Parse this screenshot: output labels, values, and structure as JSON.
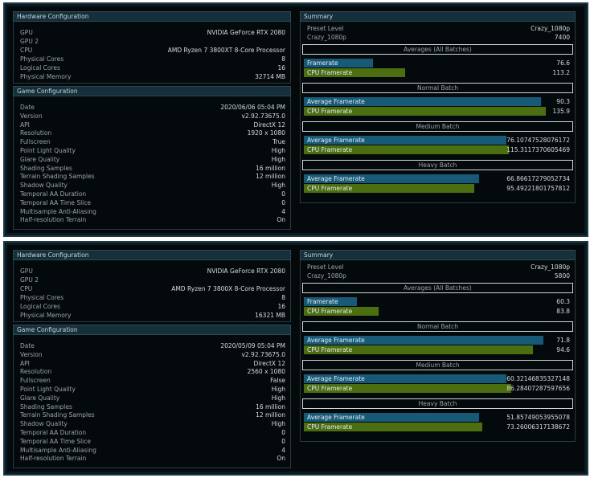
{
  "colors": {
    "framerate_bar": "#175a78",
    "cpu_bar": "#4b6e10",
    "header_bg": "#16303b"
  },
  "runs": [
    {
      "hardware": {
        "title": "Hardware Configuration",
        "rows": [
          {
            "k": "GPU",
            "v": "NVIDIA GeForce RTX 2080"
          },
          {
            "k": "GPU 2",
            "v": ""
          },
          {
            "k": "CPU",
            "v": "AMD Ryzen 7 3800XT 8-Core Processor"
          },
          {
            "k": "Physical Cores",
            "v": "8"
          },
          {
            "k": "Logical Cores",
            "v": "16"
          },
          {
            "k": "Physical Memory",
            "v": "32714 MB"
          }
        ]
      },
      "game": {
        "title": "Game Configuration",
        "rows": [
          {
            "k": "Date",
            "v": "2020/06/06 05:04 PM"
          },
          {
            "k": "Version",
            "v": "v2.92.73675.0"
          },
          {
            "k": "API",
            "v": "DirectX 12"
          },
          {
            "k": "Resolution",
            "v": "1920 x 1080"
          },
          {
            "k": "Fullscreen",
            "v": "True"
          },
          {
            "k": "Point Light Quality",
            "v": "High"
          },
          {
            "k": "Glare Quality",
            "v": "High"
          },
          {
            "k": "Shading Samples",
            "v": "16 million"
          },
          {
            "k": "Terrain Shading Samples",
            "v": "12 million"
          },
          {
            "k": "Shadow Quality",
            "v": "High"
          },
          {
            "k": "Temporal AA Duration",
            "v": "0"
          },
          {
            "k": "Temporal AA Time Slice",
            "v": "0"
          },
          {
            "k": "Multisample Anti-Aliasing",
            "v": "4"
          },
          {
            "k": "Half-resolution Terrain",
            "v": "On"
          }
        ]
      },
      "summary": {
        "title": "Summary",
        "preset_label": "Preset Level",
        "preset_value": "Crazy_1080p",
        "score_label": "Crazy_1080p",
        "score": "7400",
        "sections": [
          {
            "title": "Averages (All Batches)",
            "bars": [
              {
                "label": "Framerate",
                "value": "76.6",
                "fill": 0.26
              },
              {
                "label": "CPU Framerate",
                "value": "113.2",
                "fill": 0.38
              }
            ]
          },
          {
            "title": "Normal Batch",
            "bars": [
              {
                "label": "Average Framerate",
                "value": "90.3",
                "fill": 0.89
              },
              {
                "label": "CPU Framerate",
                "value": "135.9",
                "fill": 0.91
              }
            ]
          },
          {
            "title": "Medium Batch",
            "bars": [
              {
                "label": "Average Framerate",
                "value": "76.10747528076172",
                "fill": 0.76
              },
              {
                "label": "CPU Framerate",
                "value": "115.3117370605469",
                "fill": 0.77
              }
            ]
          },
          {
            "title": "Heavy Batch",
            "bars": [
              {
                "label": "Average Framerate",
                "value": "66.86617279052734",
                "fill": 0.66
              },
              {
                "label": "CPU Framerate",
                "value": "95.49221801757812",
                "fill": 0.64
              }
            ]
          }
        ]
      }
    },
    {
      "hardware": {
        "title": "Hardware Configuration",
        "rows": [
          {
            "k": "GPU",
            "v": "NVIDIA GeForce RTX 2080"
          },
          {
            "k": "GPU 2",
            "v": ""
          },
          {
            "k": "CPU",
            "v": "AMD Ryzen 7 3800X 8-Core Processor"
          },
          {
            "k": "Physical Cores",
            "v": "8"
          },
          {
            "k": "Logical Cores",
            "v": "16"
          },
          {
            "k": "Physical Memory",
            "v": "16321 MB"
          }
        ]
      },
      "game": {
        "title": "Game Configuration",
        "rows": [
          {
            "k": "Date",
            "v": "2020/05/09 05:04 PM"
          },
          {
            "k": "Version",
            "v": "v2.92.73675.0"
          },
          {
            "k": "API",
            "v": "DirectX 12"
          },
          {
            "k": "Resolution",
            "v": "2560 x 1080"
          },
          {
            "k": "Fullscreen",
            "v": "False"
          },
          {
            "k": "Point Light Quality",
            "v": "High"
          },
          {
            "k": "Glare Quality",
            "v": "High"
          },
          {
            "k": "Shading Samples",
            "v": "16 million"
          },
          {
            "k": "Terrain Shading Samples",
            "v": "12 million"
          },
          {
            "k": "Shadow Quality",
            "v": "High"
          },
          {
            "k": "Temporal AA Duration",
            "v": "0"
          },
          {
            "k": "Temporal AA Time Slice",
            "v": "0"
          },
          {
            "k": "Multisample Anti-Aliasing",
            "v": "4"
          },
          {
            "k": "Half-resolution Terrain",
            "v": "On"
          }
        ]
      },
      "summary": {
        "title": "Summary",
        "preset_label": "Preset Level",
        "preset_value": "Crazy_1080p",
        "score_label": "Crazy_1080p",
        "score": "5800",
        "sections": [
          {
            "title": "Averages (All Batches)",
            "bars": [
              {
                "label": "Framerate",
                "value": "60.3",
                "fill": 0.2
              },
              {
                "label": "CPU Framerate",
                "value": "83.8",
                "fill": 0.28
              }
            ]
          },
          {
            "title": "Normal Batch",
            "bars": [
              {
                "label": "Average Framerate",
                "value": "71.8",
                "fill": 0.9
              },
              {
                "label": "CPU Framerate",
                "value": "94.6",
                "fill": 0.86
              }
            ]
          },
          {
            "title": "Medium Batch",
            "bars": [
              {
                "label": "Average Framerate",
                "value": "60.32146835327148",
                "fill": 0.76
              },
              {
                "label": "CPU Framerate",
                "value": "86.28407287597656",
                "fill": 0.78
              }
            ]
          },
          {
            "title": "Heavy Batch",
            "bars": [
              {
                "label": "Average Framerate",
                "value": "51.85749053955078",
                "fill": 0.66
              },
              {
                "label": "CPU Framerate",
                "value": "73.26006317138672",
                "fill": 0.67
              }
            ]
          }
        ]
      }
    }
  ]
}
